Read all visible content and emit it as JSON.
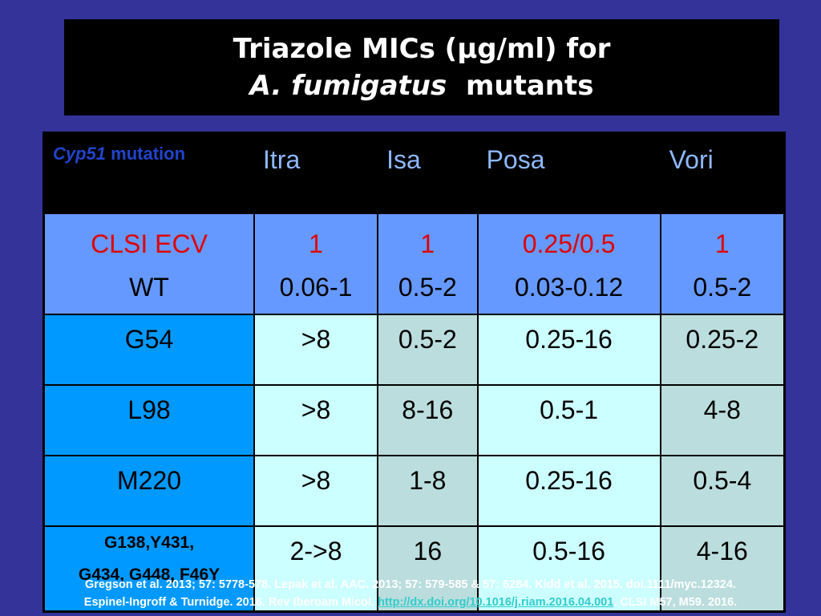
{
  "title": {
    "line1": "Triazole MICs (µg/ml) for",
    "line2_italic": "A. fumigatus",
    "line2_rest": "mutants"
  },
  "table": {
    "header": {
      "first_italic": "Cyp51",
      "first_rest": " mutation",
      "cols": [
        "Itra",
        "Isa",
        "Posa",
        "Vori"
      ]
    },
    "ecv_row": {
      "label1": "CLSI ECV",
      "label2": "WT",
      "ecv": [
        "1",
        "1",
        "0.25/0.5",
        "1"
      ],
      "wt": [
        "0.06-1",
        "0.5-2",
        "0.03-0.12",
        "0.5-2"
      ]
    },
    "rows": [
      {
        "label": "G54",
        "values": [
          ">8",
          "0.5-2",
          "0.25-16",
          "0.25-2"
        ]
      },
      {
        "label": "L98",
        "values": [
          ">8",
          "8-16",
          "0.5-1",
          "4-8"
        ]
      },
      {
        "label": "M220",
        "values": [
          ">8",
          "1-8",
          "0.25-16",
          "0.5-4"
        ]
      },
      {
        "label1": "G138,Y431,",
        "label2": "G434, G448, F46Y",
        "values": [
          "2->8",
          "16",
          "0.5-16",
          "4-16"
        ]
      }
    ]
  },
  "references": {
    "line1": "Gregson et al.  2013; 57: 5778-578. Lepak et al. AAC. 2013; 57: 579-585 & 57: 6284.  Kidd et al. 2015. doi.1111/myc.12324.",
    "line2_pre": "Espinel-Ingroff & Turnidge. 2016. Rev Iberoam Micol. ",
    "link": "http://dx.doi.org/10.1016/j.riam.2016.04.001",
    "line2_post": ". CLSI M57, M59. 2016."
  },
  "colors": {
    "background": "#333399",
    "ecv_row": "#6699ff",
    "mutation_label": "#0099ff",
    "cell_light": "#ccffff",
    "cell_grey": "#bbdddd",
    "ecv_text": "#e00000"
  }
}
